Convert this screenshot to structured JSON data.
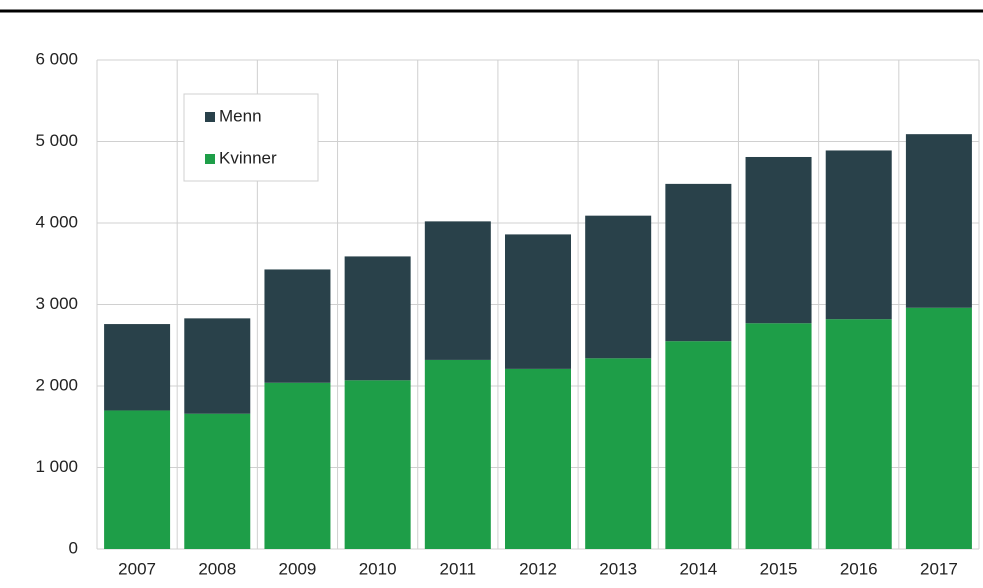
{
  "chart_data": {
    "type": "bar",
    "stacked": true,
    "categories": [
      "2007",
      "2008",
      "2009",
      "2010",
      "2011",
      "2012",
      "2013",
      "2014",
      "2015",
      "2016",
      "2017"
    ],
    "series": [
      {
        "name": "Kvinner",
        "color": "#1e9e48",
        "values": [
          1700,
          1660,
          2040,
          2070,
          2320,
          2210,
          2340,
          2550,
          2770,
          2820,
          2960
        ]
      },
      {
        "name": "Menn",
        "color": "#29414a",
        "values": [
          1060,
          1170,
          1390,
          1520,
          1700,
          1650,
          1750,
          1930,
          2040,
          2070,
          2130
        ]
      }
    ],
    "ylim": [
      0,
      6000
    ],
    "yticks": [
      0,
      {
        "value": 1000,
        "label": "1 000"
      },
      {
        "value": 2000,
        "label": "2 000"
      },
      {
        "value": 3000,
        "label": "3 000"
      },
      {
        "value": 4000,
        "label": "4 000"
      },
      {
        "value": 5000,
        "label": "5 000"
      },
      {
        "value": 6000,
        "label": "6 000"
      }
    ],
    "grid": true,
    "legend": "upper left"
  }
}
